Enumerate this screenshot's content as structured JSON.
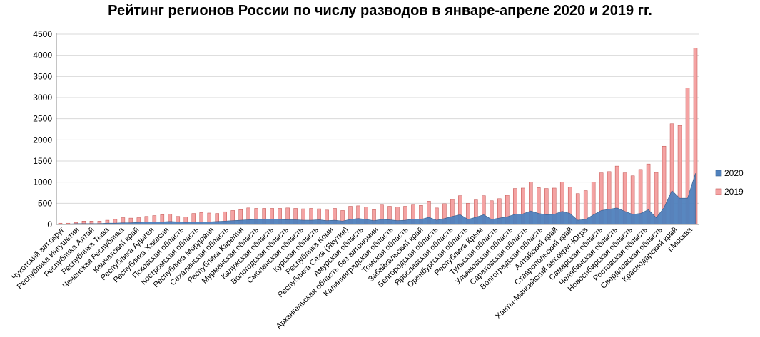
{
  "chart_data": {
    "type": "area",
    "title": "Рейтинг регионов России по числу разводов в январе-апреле 2020 и 2019 гг.",
    "ylim": [
      0,
      4500
    ],
    "yticks": [
      0,
      500,
      1000,
      1500,
      2000,
      2500,
      3000,
      3500,
      4000,
      4500
    ],
    "grid": true,
    "legend_position": "right",
    "colors": {
      "2020": "#4f81bd",
      "2019": "#f4a3a3",
      "bar2019_stroke": "#c0504d",
      "axis": "#888888"
    },
    "category_labels": [
      "Чукотский авт.округ",
      "Республика Ингушетия",
      "Республика Алтай",
      "Республика Тыва",
      "Чеченская Республика",
      "Камчатский край",
      "Республика Адыгея",
      "Республика Хакасия",
      "Псковская область",
      "Костромская область",
      "Республика Мордовия",
      "Сахалинская область",
      "Республика Карелия",
      "Мурманская область",
      "Калужская область",
      "Вологодская область",
      "Смоленская область",
      "Курская область",
      "Республика Коми",
      "Республика Саха (Якутия)",
      "Амурская область",
      "Архангельская область без автономии",
      "Калининградская область",
      "Томская область",
      "Забайкальский край",
      "Белгородская область",
      "Ярославская область",
      "Оренбургская область",
      "Республика Крым",
      "Тульская область",
      "Ульяновская область",
      "Саратовская область",
      "Волгоградская область",
      "Алтайский край",
      "Ставропольский край",
      "Ханты-Мансийский авт.округ-Югра",
      "Самарская область",
      "Челябинская область",
      "Новосибирская область",
      "Ростовская область",
      "Свердловская область",
      "Краснодарский край",
      "г.Москва"
    ],
    "series": [
      {
        "name": "2019",
        "type": "bar",
        "values": [
          30,
          30,
          50,
          80,
          80,
          80,
          100,
          120,
          160,
          150,
          160,
          190,
          210,
          230,
          240,
          190,
          180,
          260,
          280,
          270,
          260,
          300,
          330,
          350,
          390,
          380,
          380,
          380,
          380,
          390,
          380,
          370,
          380,
          370,
          340,
          380,
          330,
          430,
          440,
          410,
          350,
          460,
          430,
          410,
          430,
          460,
          450,
          550,
          390,
          490,
          590,
          680,
          500,
          580,
          680,
          560,
          610,
          690,
          850,
          860,
          1000,
          870,
          850,
          860,
          1000,
          880,
          730,
          800,
          1000,
          1220,
          1250,
          1380,
          1220,
          1150,
          1300,
          1430,
          1230,
          1850,
          2380,
          2340,
          3230,
          4170
        ]
      },
      {
        "name": "2020",
        "type": "area",
        "values": [
          10,
          10,
          20,
          20,
          20,
          20,
          30,
          30,
          40,
          40,
          50,
          60,
          60,
          60,
          70,
          60,
          50,
          60,
          60,
          60,
          70,
          80,
          90,
          100,
          110,
          120,
          120,
          130,
          120,
          110,
          110,
          100,
          100,
          110,
          90,
          100,
          80,
          120,
          140,
          120,
          90,
          120,
          110,
          90,
          100,
          130,
          120,
          170,
          100,
          140,
          190,
          230,
          120,
          170,
          230,
          120,
          150,
          180,
          240,
          250,
          320,
          260,
          230,
          240,
          310,
          260,
          100,
          120,
          230,
          330,
          360,
          390,
          310,
          240,
          260,
          350,
          160,
          400,
          800,
          620,
          620,
          1210
        ]
      }
    ]
  }
}
